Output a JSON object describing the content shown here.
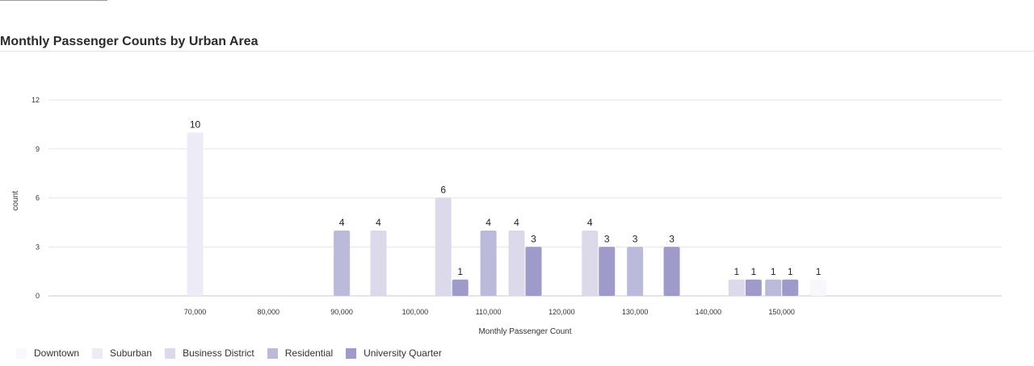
{
  "title": "Monthly Passenger Counts by Urban Area",
  "colors": {
    "Downtown": "#f8f7fb",
    "Suburban": "#edebf5",
    "Business District": "#dcdaea",
    "Residential": "#bcbadb",
    "University Quarter": "#9e9ac9"
  },
  "chart_data": {
    "type": "bar",
    "title": "Monthly Passenger Counts by Urban Area",
    "xlabel": "Monthly Passenger Count",
    "ylabel": "count",
    "ylim": [
      0,
      12
    ],
    "yticks": [
      0,
      3,
      6,
      9,
      12
    ],
    "xlim": [
      50000,
      180000
    ],
    "xticks": [
      70000,
      80000,
      90000,
      100000,
      110000,
      120000,
      130000,
      140000,
      150000
    ],
    "xtick_labels": [
      "70,000",
      "80,000",
      "90,000",
      "100,000",
      "110,000",
      "120,000",
      "130,000",
      "140,000",
      "150,000"
    ],
    "bin_width": 5000,
    "grid": true,
    "legend_position": "bottom-left",
    "series": [
      {
        "name": "Downtown",
        "bars": [
          {
            "x": 155000,
            "count": 1
          }
        ]
      },
      {
        "name": "Suburban",
        "bars": [
          {
            "x": 70000,
            "count": 10
          }
        ]
      },
      {
        "name": "Business District",
        "bars": [
          {
            "x": 95000,
            "count": 4
          },
          {
            "x": 105000,
            "count": 6
          },
          {
            "x": 115000,
            "count": 4
          },
          {
            "x": 125000,
            "count": 4
          },
          {
            "x": 145000,
            "count": 1
          }
        ]
      },
      {
        "name": "Residential",
        "bars": [
          {
            "x": 90000,
            "count": 4
          },
          {
            "x": 110000,
            "count": 4
          },
          {
            "x": 130000,
            "count": 3
          },
          {
            "x": 150000,
            "count": 1
          }
        ]
      },
      {
        "name": "University Quarter",
        "bars": [
          {
            "x": 105000,
            "count": 1
          },
          {
            "x": 115000,
            "count": 3
          },
          {
            "x": 125000,
            "count": 3
          },
          {
            "x": 135000,
            "count": 3
          },
          {
            "x": 145000,
            "count": 1
          },
          {
            "x": 150000,
            "count": 1
          }
        ]
      }
    ]
  }
}
